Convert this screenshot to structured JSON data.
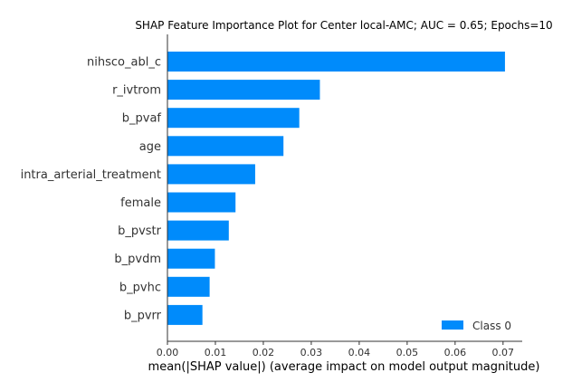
{
  "chart_data": {
    "type": "bar",
    "orientation": "horizontal",
    "title": "SHAP Feature Importance Plot for Center local-AMC; AUC = 0.65; Epochs=10",
    "xlabel": "mean(|SHAP value|) (average impact on model output magnitude)",
    "ylabel": "",
    "categories": [
      "nihsco_abl_c",
      "r_ivtrom",
      "b_pvaf",
      "age",
      "intra_arterial_treatment",
      "female",
      "b_pvstr",
      "b_pvdm",
      "b_pvhc",
      "b_pvrr"
    ],
    "series": [
      {
        "name": "Class 0",
        "values": [
          0.0704,
          0.0318,
          0.0275,
          0.0242,
          0.0183,
          0.0142,
          0.0128,
          0.0099,
          0.0088,
          0.0073
        ]
      }
    ],
    "xlim": [
      0,
      0.074
    ],
    "xticks": [
      0.0,
      0.01,
      0.02,
      0.03,
      0.04,
      0.05,
      0.06,
      0.07
    ],
    "xtick_labels": [
      "0.00",
      "0.01",
      "0.02",
      "0.03",
      "0.04",
      "0.05",
      "0.06",
      "0.07"
    ],
    "grid": false,
    "legend_position": "lower-right",
    "bar_color": "#008bfb"
  }
}
